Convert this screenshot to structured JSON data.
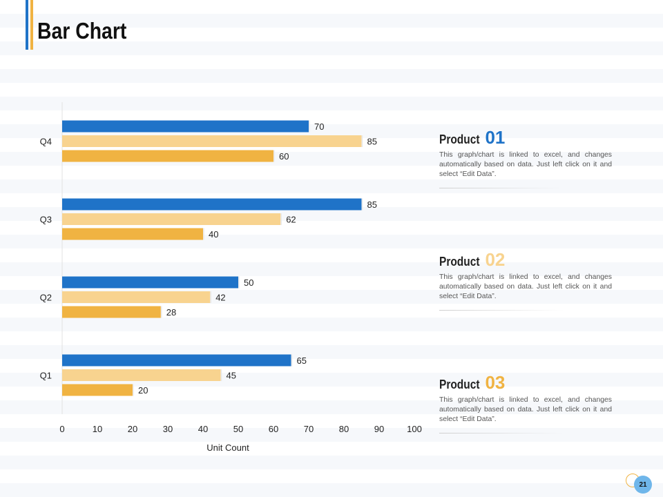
{
  "header": {
    "title": "Bar Chart"
  },
  "chart_data": {
    "type": "bar",
    "orientation": "horizontal",
    "title": "",
    "xlabel": "Unit Count",
    "ylabel": "",
    "xlim": [
      0,
      100
    ],
    "x_ticks": [
      0,
      10,
      20,
      30,
      40,
      50,
      60,
      70,
      80,
      90,
      100
    ],
    "categories": [
      "Q1",
      "Q2",
      "Q3",
      "Q4"
    ],
    "series": [
      {
        "name": "Product 01",
        "color": "#1f73c8",
        "values": [
          65,
          50,
          85,
          70
        ]
      },
      {
        "name": "Product 02",
        "color": "#f8d38f",
        "values": [
          45,
          42,
          62,
          85
        ]
      },
      {
        "name": "Product 03",
        "color": "#f0b342",
        "values": [
          20,
          28,
          40,
          60
        ]
      }
    ],
    "data_labels": true,
    "legend": "none"
  },
  "products": [
    {
      "word": "Product",
      "number": "01",
      "color": "#1f73c8",
      "description": "This graph/chart is linked to excel, and changes automatically  based on data. Just left click  on it and select “Edit Data”."
    },
    {
      "word": "Product",
      "number": "02",
      "color": "#f8d38f",
      "description": "This graph/chart is linked to excel, and changes automatically  based on data. Just left click  on it and select “Edit Data”."
    },
    {
      "word": "Product",
      "number": "03",
      "color": "#f0b342",
      "description": "This graph/chart is linked to excel, and changes automatically  based on data. Just left click  on it and select “Edit Data”."
    }
  ],
  "footer": {
    "page_number": "21"
  }
}
